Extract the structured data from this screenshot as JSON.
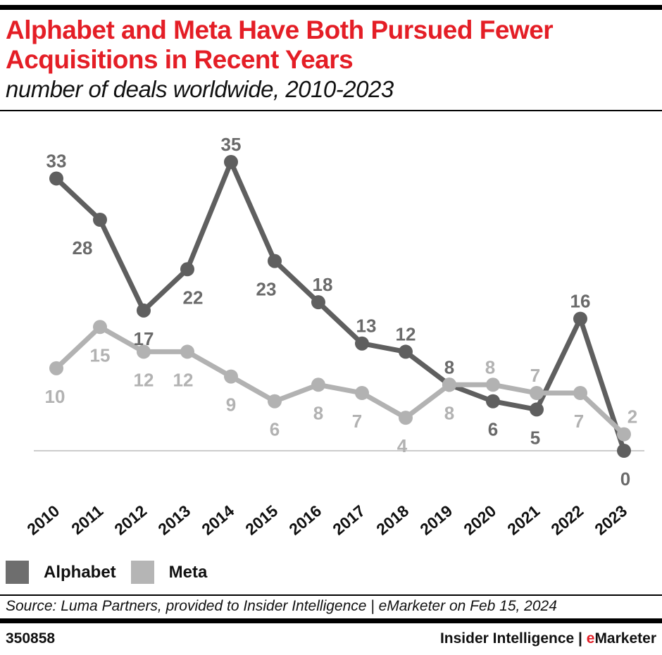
{
  "header": {
    "title_line1": "Alphabet and Meta Have Both Pursued Fewer",
    "title_line2": "Acquisitions in Recent Years",
    "subtitle": "number of deals worldwide, 2010-2023"
  },
  "chart_data": {
    "type": "line",
    "title": "Alphabet and Meta Have Both Pursued Fewer Acquisitions in Recent Years",
    "subtitle": "number of deals worldwide, 2010-2023",
    "categories": [
      "2010",
      "2011",
      "2012",
      "2013",
      "2014",
      "2015",
      "2016",
      "2017",
      "2018",
      "2019",
      "2020",
      "2021",
      "2022",
      "2023"
    ],
    "series": [
      {
        "name": "Alphabet",
        "color": "#5f5f5f",
        "label_color": "#6a6a6a",
        "values": [
          33,
          28,
          17,
          22,
          35,
          23,
          18,
          13,
          12,
          8,
          6,
          5,
          16,
          0
        ],
        "label_pos": [
          "above",
          "below",
          "below",
          "below",
          "above",
          "below",
          "above",
          "above",
          "above",
          "above",
          "below",
          "below",
          "above",
          "below"
        ],
        "label_dx": [
          0,
          -25,
          0,
          8,
          0,
          -12,
          6,
          6,
          0,
          0,
          0,
          -2,
          0,
          2
        ]
      },
      {
        "name": "Meta",
        "color": "#b2b2b2",
        "label_color": "#b2b2b2",
        "values": [
          10,
          15,
          12,
          12,
          9,
          6,
          8,
          7,
          4,
          8,
          8,
          7,
          7,
          2
        ],
        "label_pos": [
          "below",
          "below",
          "below",
          "below",
          "below",
          "below",
          "below",
          "below",
          "below",
          "below",
          "above",
          "above",
          "below",
          "above"
        ],
        "label_dx": [
          -2,
          0,
          0,
          -6,
          0,
          0,
          0,
          -7,
          -5,
          0,
          -4,
          -2,
          -2,
          12
        ]
      }
    ],
    "ylim": [
      0,
      35
    ],
    "grid": false,
    "baseline_color": "#cccccc",
    "axis_label_color": "#111111",
    "legend_position": "bottom-left"
  },
  "legend": {
    "items": [
      {
        "label": "Alphabet",
        "color": "#6e6e6e"
      },
      {
        "label": "Meta",
        "color": "#b5b5b5"
      }
    ]
  },
  "footer": {
    "source": "Source: Luma Partners, provided to Insider Intelligence | eMarketer on Feb 15, 2024",
    "chart_id": "350858",
    "brand_left": "Insider Intelligence",
    "brand_sep": " | ",
    "brand_e": "e",
    "brand_rest": "Marketer"
  },
  "colors": {
    "accent_red": "#e41e26",
    "bar_black": "#000000"
  }
}
